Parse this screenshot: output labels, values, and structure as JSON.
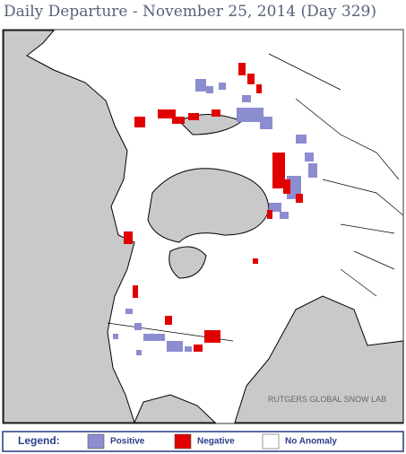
{
  "header": {
    "title": "Daily Departure - November 25, 2014 (Day 329)"
  },
  "map": {
    "credit": "RUTGERS GLOBAL SNOW LAB"
  },
  "legend": {
    "label": "Legend:",
    "items": [
      {
        "label": "Positive",
        "color": "#8c8cd0"
      },
      {
        "label": "Negative",
        "color": "#e00000"
      },
      {
        "label": "No Anomaly",
        "color": "#ffffff"
      }
    ]
  }
}
